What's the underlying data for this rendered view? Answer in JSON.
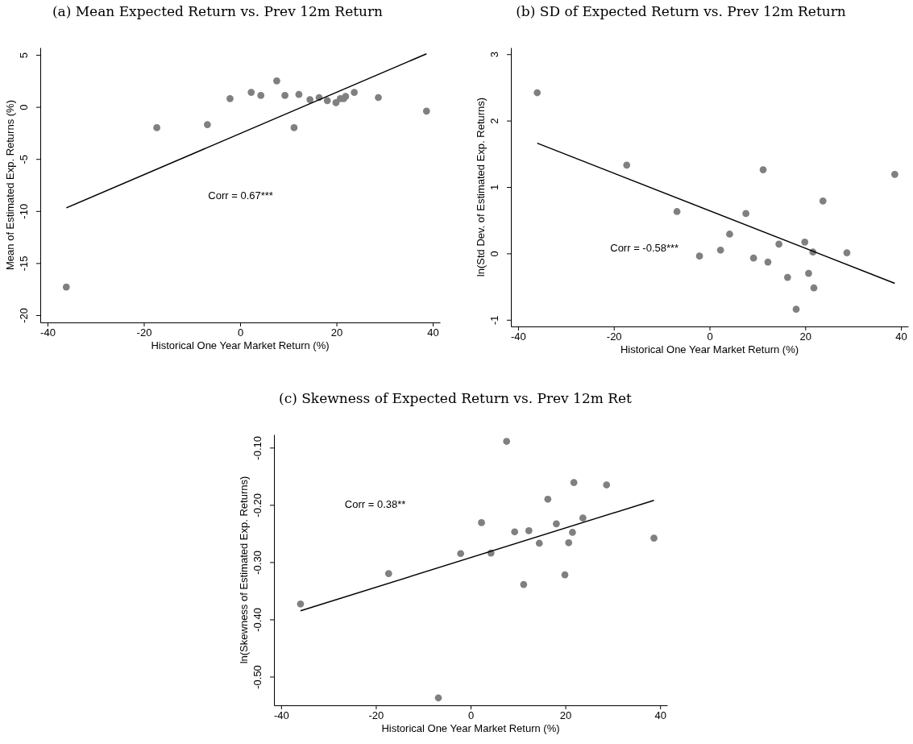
{
  "chart_data": [
    {
      "type": "scatter",
      "title": "(a) Mean Expected Return vs. Prev 12m Return",
      "xlabel": "Historical One Year Market Return (%)",
      "ylabel": "Mean of Estimated Exp. Returns (%)",
      "annotations": [
        "Corr = 0.67***"
      ],
      "grid": false,
      "xlim": [
        -41.5,
        41.5
      ],
      "ylim": [
        -20.7,
        5.7
      ],
      "xticks": [
        -40,
        -20,
        0,
        20,
        40
      ],
      "yticks": [
        -20,
        -15,
        -10,
        -5,
        0,
        5
      ],
      "series": [
        {
          "marker": "circle",
          "color": "#808080",
          "x": [
            -36.1,
            -17.3,
            -6.8,
            -2.1,
            2.3,
            4.3,
            7.6,
            9.3,
            11.2,
            12.2,
            14.5,
            16.4,
            18.1,
            19.9,
            20.8,
            21.5,
            21.9,
            23.7,
            28.7,
            38.7
          ],
          "values": [
            -17.3,
            -2.0,
            -1.7,
            0.8,
            1.4,
            1.1,
            2.5,
            1.1,
            -2.0,
            1.2,
            0.7,
            0.9,
            0.6,
            0.4,
            0.8,
            0.8,
            1.0,
            1.4,
            0.9,
            -0.4
          ]
        },
        {
          "type": "line",
          "color": "#000000",
          "x": [
            -36.1,
            38.7
          ],
          "values": [
            -9.7,
            5.1
          ]
        }
      ]
    },
    {
      "type": "scatter",
      "title": "(b) SD of Expected Return vs. Prev 12m Return",
      "xlabel": "Historical One Year Market Return (%)",
      "ylabel": "ln(Std Dev. of Estimated Exp. Returns)",
      "annotations": [
        "Corr = -0.58***"
      ],
      "grid": false,
      "xlim": [
        -41.5,
        41.5
      ],
      "ylim": [
        -1.1,
        3.1
      ],
      "xticks": [
        -40,
        -20,
        0,
        20,
        40
      ],
      "yticks": [
        -1,
        0,
        1,
        2,
        3
      ],
      "series": [
        {
          "marker": "circle",
          "color": "#808080",
          "x": [
            -36.0,
            -17.3,
            -6.8,
            -2.1,
            2.3,
            4.2,
            7.6,
            9.2,
            11.2,
            12.2,
            14.5,
            16.3,
            18.1,
            19.9,
            20.7,
            21.6,
            21.8,
            23.7,
            28.7,
            38.7
          ],
          "values": [
            2.42,
            1.33,
            0.63,
            -0.04,
            0.05,
            0.29,
            0.6,
            -0.07,
            1.26,
            -0.13,
            0.14,
            -0.36,
            -0.84,
            0.17,
            -0.3,
            0.02,
            -0.52,
            0.79,
            0.01,
            1.19
          ]
        },
        {
          "type": "line",
          "color": "#000000",
          "x": [
            -36.0,
            38.7
          ],
          "values": [
            1.66,
            -0.45
          ]
        }
      ]
    },
    {
      "type": "scatter",
      "title": "(c) Skewness of Expected Return vs. Prev 12m Ret",
      "xlabel": "Historical One Year Market Return (%)",
      "ylabel": "ln(Skewness of Estimated Exp. Returns)",
      "annotations": [
        "Corr = 0.38**"
      ],
      "grid": false,
      "xlim": [
        -41.5,
        41.5
      ],
      "ylim": [
        -0.55,
        -0.077
      ],
      "xticks": [
        -40,
        -20,
        0,
        20,
        40
      ],
      "yticks": [
        {
          "value": -0.5,
          "label": "-0.50"
        },
        {
          "value": -0.4,
          "label": "-0.40"
        },
        {
          "value": -0.3,
          "label": "-0.30"
        },
        {
          "value": -0.2,
          "label": "-0.20"
        },
        {
          "value": -0.1,
          "label": "-0.10"
        }
      ],
      "series": [
        {
          "marker": "circle",
          "color": "#808080",
          "x": [
            -35.9,
            -17.3,
            -6.8,
            -2.1,
            2.3,
            4.3,
            7.6,
            9.3,
            11.2,
            12.3,
            14.5,
            16.3,
            18.1,
            19.9,
            20.7,
            21.5,
            21.8,
            23.7,
            28.7,
            38.7
          ],
          "values": [
            -0.373,
            -0.32,
            -0.537,
            -0.285,
            -0.231,
            -0.284,
            -0.089,
            -0.247,
            -0.339,
            -0.245,
            -0.267,
            -0.19,
            -0.233,
            -0.322,
            -0.266,
            -0.248,
            -0.161,
            -0.223,
            -0.165,
            -0.258
          ]
        },
        {
          "type": "line",
          "color": "#000000",
          "x": [
            -35.9,
            38.7
          ],
          "values": [
            -0.385,
            -0.192
          ]
        }
      ]
    }
  ]
}
